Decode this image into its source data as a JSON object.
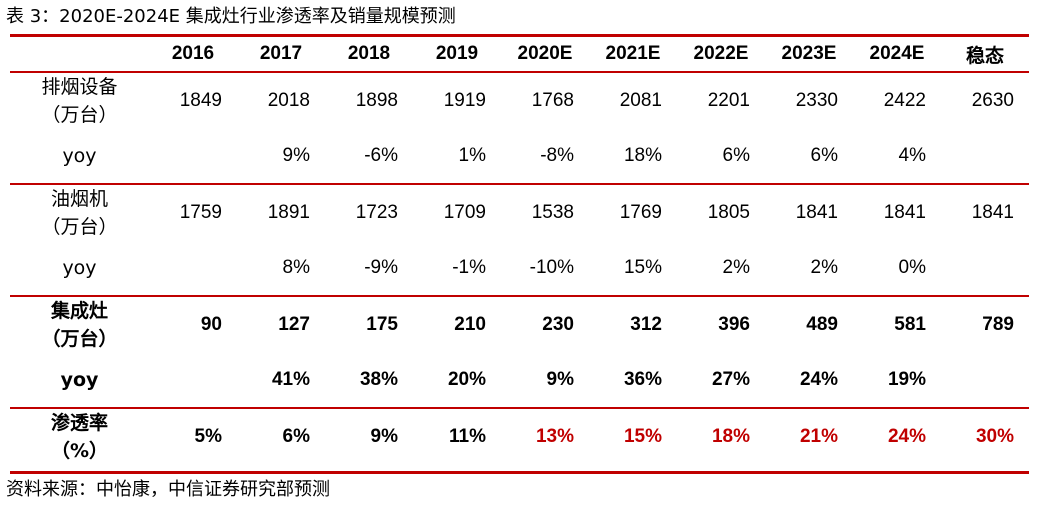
{
  "title": "表 3：2020E-2024E 集成灶行业渗透率及销量规模预测",
  "source": "资料来源：中怡康，中信证券研究部预测",
  "colors": {
    "rule": "#c00000",
    "highlight": "#c00000",
    "text": "#000000"
  },
  "table": {
    "header": [
      "",
      "2016",
      "2017",
      "2018",
      "2019",
      "2020E",
      "2021E",
      "2022E",
      "2023E",
      "2024E",
      "稳态"
    ],
    "rows": [
      {
        "label_lines": [
          "排烟设备",
          "（万台）"
        ],
        "values": [
          "1849",
          "2018",
          "1898",
          "1919",
          "1768",
          "2081",
          "2201",
          "2330",
          "2422",
          "2630"
        ]
      },
      {
        "label_lines": [
          "yoy"
        ],
        "values": [
          "",
          "9%",
          "-6%",
          "1%",
          "-8%",
          "18%",
          "6%",
          "6%",
          "4%",
          ""
        ]
      },
      {
        "label_lines": [
          "油烟机",
          "（万台）"
        ],
        "values": [
          "1759",
          "1891",
          "1723",
          "1709",
          "1538",
          "1769",
          "1805",
          "1841",
          "1841",
          "1841"
        ]
      },
      {
        "label_lines": [
          "yoy"
        ],
        "values": [
          "",
          "8%",
          "-9%",
          "-1%",
          "-10%",
          "15%",
          "2%",
          "2%",
          "0%",
          ""
        ]
      },
      {
        "label_lines": [
          "集成灶",
          "（万台）"
        ],
        "values": [
          "90",
          "127",
          "175",
          "210",
          "230",
          "312",
          "396",
          "489",
          "581",
          "789"
        ]
      },
      {
        "label_lines": [
          "yoy"
        ],
        "values": [
          "",
          "41%",
          "38%",
          "20%",
          "9%",
          "36%",
          "27%",
          "24%",
          "19%",
          ""
        ]
      },
      {
        "label_lines": [
          "渗透率",
          "（%）"
        ],
        "values": [
          "5%",
          "6%",
          "9%",
          "11%",
          "13%",
          "15%",
          "18%",
          "21%",
          "24%",
          "30%"
        ]
      }
    ]
  }
}
